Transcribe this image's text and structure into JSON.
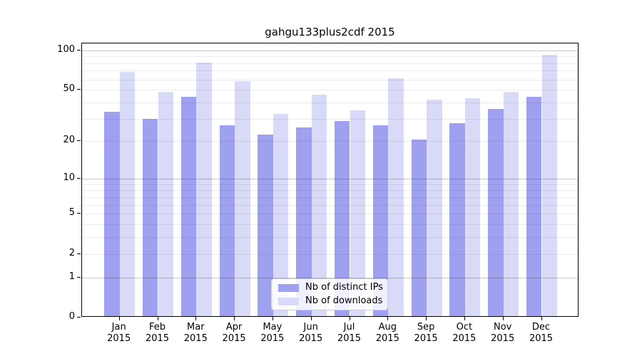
{
  "title": "gahgu133plus2cdf 2015",
  "colors": {
    "ips_bar": "#a0a0f0",
    "downloads_bar": "#d9d9f8",
    "grid_minor": "rgba(0,0,0,0.075)",
    "grid_major": "rgba(0,0,0,0.22)",
    "axis_frame": "#000000",
    "legend_border": "#cccccc"
  },
  "y_axis": {
    "tick_labels": [
      "100",
      "50",
      "20",
      "10",
      "5",
      "2",
      "1",
      "0"
    ],
    "tick_values": [
      100,
      50,
      20,
      10,
      5,
      2,
      1,
      0
    ],
    "minor_grid_values": [
      2,
      3,
      4,
      5,
      6,
      7,
      8,
      9,
      20,
      30,
      40,
      50,
      60,
      70,
      80,
      90
    ],
    "major_grid_values": [
      1,
      10,
      100
    ]
  },
  "x_axis": {
    "months": [
      "Jan",
      "Feb",
      "Mar",
      "Apr",
      "May",
      "Jun",
      "Jul",
      "Aug",
      "Sep",
      "Oct",
      "Nov",
      "Dec"
    ],
    "year": "2015"
  },
  "legend": {
    "items": [
      {
        "label": "Nb of distinct IPs",
        "series": "ips"
      },
      {
        "label": "Nb of downloads",
        "series": "downloads"
      }
    ]
  },
  "chart_data": {
    "type": "bar",
    "title": "gahgu133plus2cdf 2015",
    "categories": [
      "Jan 2015",
      "Feb 2015",
      "Mar 2015",
      "Apr 2015",
      "May 2015",
      "Jun 2015",
      "Jul 2015",
      "Aug 2015",
      "Sep 2015",
      "Oct 2015",
      "Nov 2015",
      "Dec 2015"
    ],
    "series": [
      {
        "name": "Nb of distinct IPs",
        "values": [
          33,
          29,
          43,
          26,
          22,
          25,
          28,
          26,
          20,
          27,
          35,
          43
        ]
      },
      {
        "name": "Nb of downloads",
        "values": [
          67,
          47,
          79,
          57,
          32,
          45,
          34,
          60,
          41,
          42,
          47,
          90
        ]
      }
    ],
    "xlabel": "",
    "ylabel": "",
    "yscale": "log1p",
    "ylim": [
      0,
      100
    ],
    "yticks": [
      0,
      1,
      2,
      5,
      10,
      20,
      50,
      100
    ],
    "grid": "horizontal, drawn over bars",
    "legend_position": "lower center"
  }
}
